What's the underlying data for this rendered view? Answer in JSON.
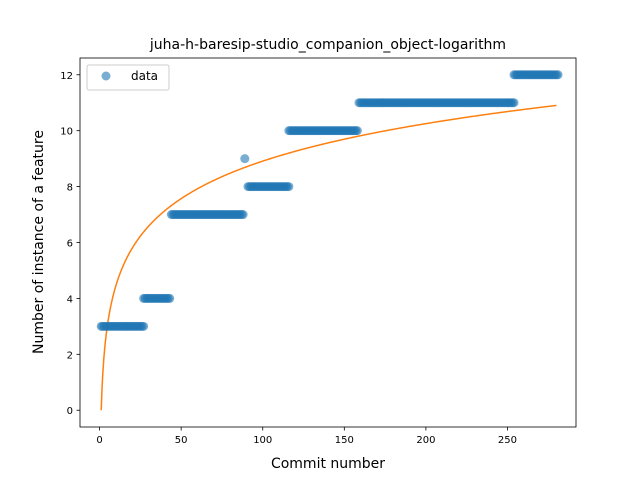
{
  "chart_data": {
    "type": "scatter",
    "title": "juha-h-baresip-studio_companion_object-logarithm",
    "xlabel": "Commit number",
    "ylabel": "Number of instance of a feature",
    "xlim": [
      -12,
      292
    ],
    "ylim": [
      -0.6,
      12.6
    ],
    "xticks": [
      0,
      50,
      100,
      150,
      200,
      250
    ],
    "yticks": [
      0,
      2,
      4,
      6,
      8,
      10,
      12
    ],
    "grid": false,
    "legend_position": "top-left",
    "series": [
      {
        "name": "data",
        "kind": "scatter",
        "color": "#1f77b4",
        "segments": [
          {
            "x_start": 1,
            "x_end": 27,
            "y": 3
          },
          {
            "x_start": 27,
            "x_end": 43,
            "y": 4
          },
          {
            "x_start": 44,
            "x_end": 88,
            "y": 7
          },
          {
            "x_start": 89,
            "x_end": 89,
            "y": 9
          },
          {
            "x_start": 91,
            "x_end": 116,
            "y": 8
          },
          {
            "x_start": 116,
            "x_end": 158,
            "y": 10
          },
          {
            "x_start": 159,
            "x_end": 254,
            "y": 11
          },
          {
            "x_start": 254,
            "x_end": 281,
            "y": 12
          }
        ]
      },
      {
        "name": "",
        "kind": "line",
        "color": "#ff7f0e",
        "model": "logarithmic",
        "a": 1.935,
        "b": 0,
        "x_start": 1,
        "x_end": 280
      }
    ]
  }
}
